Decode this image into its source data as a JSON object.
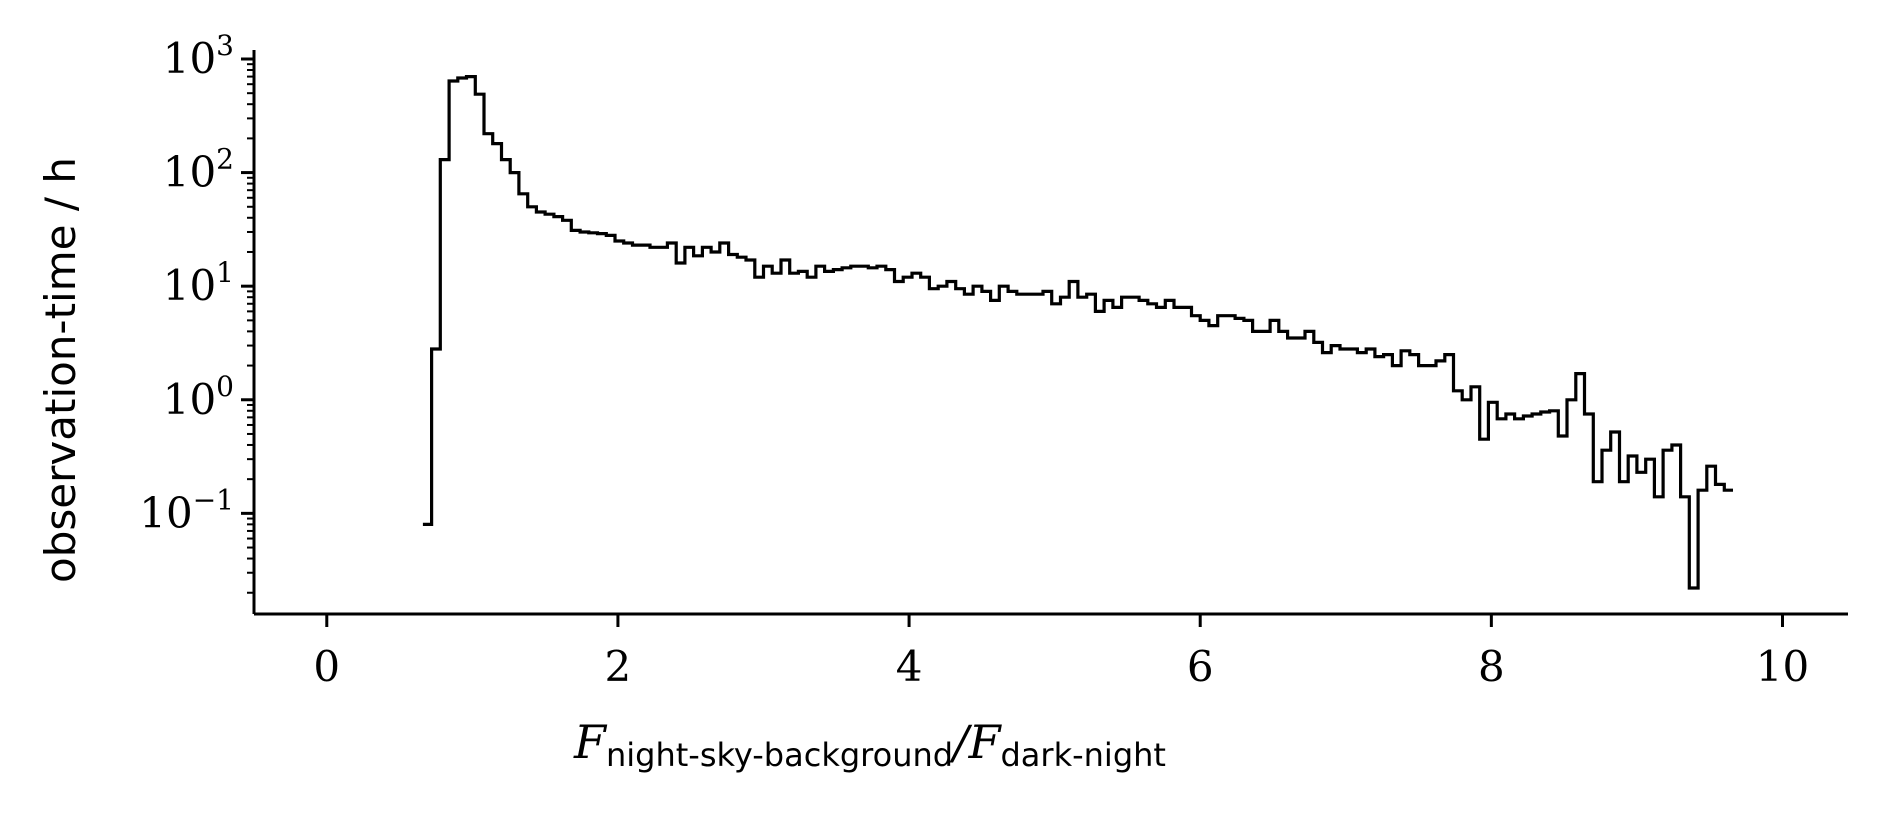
{
  "chart_data": {
    "type": "histogram-step",
    "title": "",
    "xlabel": {
      "numerator_symbol": "F",
      "numerator_subscript": "night-sky-background",
      "separator": "/",
      "denominator_symbol": "F",
      "denominator_subscript": "dark-night"
    },
    "ylabel": "observation-time / h",
    "x_scale": "linear",
    "y_scale": "log",
    "xlim": [
      -0.5,
      10.45
    ],
    "ylim": [
      0.013,
      1200
    ],
    "x_ticks": [
      {
        "value": 0,
        "label": "0"
      },
      {
        "value": 2,
        "label": "2"
      },
      {
        "value": 4,
        "label": "4"
      },
      {
        "value": 6,
        "label": "6"
      },
      {
        "value": 8,
        "label": "8"
      },
      {
        "value": 10,
        "label": "10"
      }
    ],
    "y_ticks": [
      {
        "value": 0.1,
        "base": "10",
        "exp": "−1"
      },
      {
        "value": 1,
        "base": "10",
        "exp": "0"
      },
      {
        "value": 10,
        "base": "10",
        "exp": "1"
      },
      {
        "value": 100,
        "base": "10",
        "exp": "2"
      },
      {
        "value": 1000,
        "base": "10",
        "exp": "3"
      }
    ],
    "grid": false,
    "line_color": "#000000",
    "bin_width": 0.06,
    "bins": [
      [
        0.66,
        0.08
      ],
      [
        0.72,
        2.8
      ],
      [
        0.78,
        130
      ],
      [
        0.84,
        640
      ],
      [
        0.9,
        680
      ],
      [
        0.96,
        700
      ],
      [
        1.02,
        490
      ],
      [
        1.08,
        220
      ],
      [
        1.14,
        180
      ],
      [
        1.2,
        130
      ],
      [
        1.26,
        100
      ],
      [
        1.32,
        65
      ],
      [
        1.38,
        50
      ],
      [
        1.44,
        45
      ],
      [
        1.5,
        43
      ],
      [
        1.56,
        41
      ],
      [
        1.62,
        38
      ],
      [
        1.68,
        31
      ],
      [
        1.74,
        30
      ],
      [
        1.8,
        29.5
      ],
      [
        1.86,
        29
      ],
      [
        1.92,
        28
      ],
      [
        1.98,
        25
      ],
      [
        2.04,
        24
      ],
      [
        2.1,
        23
      ],
      [
        2.16,
        23
      ],
      [
        2.22,
        22
      ],
      [
        2.28,
        22
      ],
      [
        2.34,
        24
      ],
      [
        2.4,
        16
      ],
      [
        2.46,
        22
      ],
      [
        2.52,
        18.5
      ],
      [
        2.58,
        22
      ],
      [
        2.64,
        20
      ],
      [
        2.7,
        24
      ],
      [
        2.76,
        19
      ],
      [
        2.82,
        18
      ],
      [
        2.88,
        17
      ],
      [
        2.94,
        12
      ],
      [
        3.0,
        15
      ],
      [
        3.06,
        13
      ],
      [
        3.12,
        17
      ],
      [
        3.18,
        13
      ],
      [
        3.24,
        13.5
      ],
      [
        3.3,
        12
      ],
      [
        3.36,
        15
      ],
      [
        3.42,
        13.5
      ],
      [
        3.48,
        14
      ],
      [
        3.54,
        14.5
      ],
      [
        3.6,
        15
      ],
      [
        3.66,
        15
      ],
      [
        3.72,
        14.5
      ],
      [
        3.78,
        15
      ],
      [
        3.84,
        14
      ],
      [
        3.9,
        11
      ],
      [
        3.96,
        12
      ],
      [
        4.02,
        13
      ],
      [
        4.08,
        12
      ],
      [
        4.14,
        9.5
      ],
      [
        4.2,
        10
      ],
      [
        4.26,
        11
      ],
      [
        4.32,
        9.5
      ],
      [
        4.38,
        8.5
      ],
      [
        4.44,
        10
      ],
      [
        4.5,
        9
      ],
      [
        4.56,
        7.5
      ],
      [
        4.62,
        10
      ],
      [
        4.68,
        9
      ],
      [
        4.74,
        8.5
      ],
      [
        4.8,
        8.5
      ],
      [
        4.86,
        8.5
      ],
      [
        4.92,
        9
      ],
      [
        4.98,
        7
      ],
      [
        5.04,
        8
      ],
      [
        5.1,
        11
      ],
      [
        5.16,
        8
      ],
      [
        5.22,
        8.5
      ],
      [
        5.28,
        6
      ],
      [
        5.34,
        7.5
      ],
      [
        5.4,
        6.5
      ],
      [
        5.46,
        8
      ],
      [
        5.52,
        8
      ],
      [
        5.58,
        7.5
      ],
      [
        5.64,
        7
      ],
      [
        5.7,
        6.5
      ],
      [
        5.76,
        7.5
      ],
      [
        5.82,
        6.5
      ],
      [
        5.88,
        6.5
      ],
      [
        5.94,
        5.5
      ],
      [
        6.0,
        5
      ],
      [
        6.06,
        4.5
      ],
      [
        6.12,
        5.5
      ],
      [
        6.18,
        5.5
      ],
      [
        6.24,
        5.2
      ],
      [
        6.3,
        5
      ],
      [
        6.36,
        4
      ],
      [
        6.42,
        4
      ],
      [
        6.48,
        5
      ],
      [
        6.54,
        4
      ],
      [
        6.6,
        3.5
      ],
      [
        6.66,
        3.5
      ],
      [
        6.72,
        4
      ],
      [
        6.78,
        3.2
      ],
      [
        6.84,
        2.6
      ],
      [
        6.9,
        3
      ],
      [
        6.96,
        2.8
      ],
      [
        7.02,
        2.8
      ],
      [
        7.08,
        2.6
      ],
      [
        7.14,
        2.8
      ],
      [
        7.2,
        2.4
      ],
      [
        7.26,
        2.5
      ],
      [
        7.32,
        2
      ],
      [
        7.38,
        2.7
      ],
      [
        7.44,
        2.5
      ],
      [
        7.5,
        2
      ],
      [
        7.56,
        2
      ],
      [
        7.62,
        2.2
      ],
      [
        7.68,
        2.5
      ],
      [
        7.74,
        1.2
      ],
      [
        7.8,
        1
      ],
      [
        7.86,
        1.3
      ],
      [
        7.92,
        0.45
      ],
      [
        7.98,
        0.95
      ],
      [
        8.04,
        0.68
      ],
      [
        8.1,
        0.75
      ],
      [
        8.16,
        0.68
      ],
      [
        8.22,
        0.72
      ],
      [
        8.28,
        0.75
      ],
      [
        8.34,
        0.78
      ],
      [
        8.4,
        0.8
      ],
      [
        8.46,
        0.48
      ],
      [
        8.52,
        1
      ],
      [
        8.58,
        1.7
      ],
      [
        8.64,
        0.75
      ],
      [
        8.7,
        0.19
      ],
      [
        8.76,
        0.36
      ],
      [
        8.82,
        0.52
      ],
      [
        8.88,
        0.19
      ],
      [
        8.94,
        0.32
      ],
      [
        9.0,
        0.23
      ],
      [
        9.06,
        0.3
      ],
      [
        9.12,
        0.14
      ],
      [
        9.18,
        0.36
      ],
      [
        9.24,
        0.4
      ],
      [
        9.3,
        0.14
      ],
      [
        9.36,
        0.022
      ],
      [
        9.42,
        0.16
      ],
      [
        9.48,
        0.26
      ],
      [
        9.54,
        0.18
      ],
      [
        9.6,
        0.16
      ]
    ]
  }
}
